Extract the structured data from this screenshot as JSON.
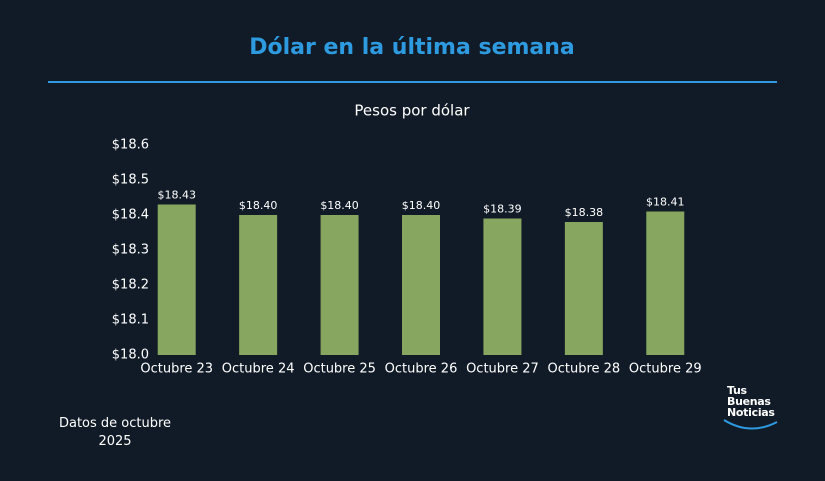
{
  "chart_data": {
    "type": "bar",
    "title": "Dólar en la última semana",
    "subtitle": "Pesos por dólar",
    "categories": [
      "Octubre 23",
      "Octubre 24",
      "Octubre 25",
      "Octubre 26",
      "Octubre 27",
      "Octubre 28",
      "Octubre 29"
    ],
    "values": [
      18.43,
      18.4,
      18.4,
      18.4,
      18.39,
      18.38,
      18.41
    ],
    "value_labels": [
      "$18.43",
      "$18.40",
      "$18.40",
      "$18.40",
      "$18.39",
      "$18.38",
      "$18.41"
    ],
    "color": "#87a65f",
    "ylim": [
      18.0,
      18.6
    ],
    "yticks": [
      {
        "value": 18.0,
        "label": "$18.0"
      },
      {
        "value": 18.1,
        "label": "$18.1"
      },
      {
        "value": 18.2,
        "label": "$18.2"
      },
      {
        "value": 18.3,
        "label": "$18.3"
      },
      {
        "value": 18.4,
        "label": "$18.4"
      },
      {
        "value": 18.5,
        "label": "$18.5"
      },
      {
        "value": 18.6,
        "label": "$18.6"
      }
    ],
    "grid": false
  },
  "footer": {
    "note": "Datos de octubre 2025",
    "logo": [
      "Tus",
      "Buenas",
      "Noticias"
    ]
  }
}
